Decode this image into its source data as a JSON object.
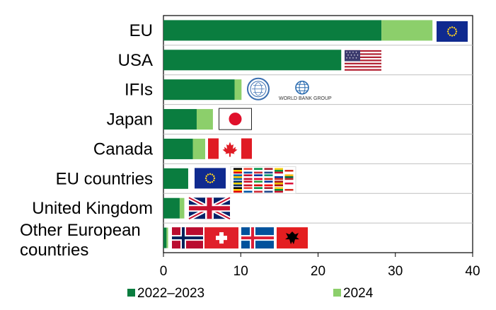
{
  "chart_data": {
    "type": "bar",
    "orientation": "horizontal",
    "stacked": true,
    "categories": [
      "EU",
      "USA",
      "IFIs",
      "Japan",
      "Canada",
      "EU countries",
      "United Kingdom",
      "Other European countries"
    ],
    "category_lines": [
      [
        "EU"
      ],
      [
        "USA"
      ],
      [
        "IFIs"
      ],
      [
        "Japan"
      ],
      [
        "Canada"
      ],
      [
        "EU countries"
      ],
      [
        "United Kingdom"
      ],
      [
        "Other European",
        "countries"
      ]
    ],
    "series": [
      {
        "name": "2022–2023",
        "color": "#0a7d3f",
        "values": [
          28.2,
          23.0,
          9.2,
          4.3,
          3.8,
          3.2,
          2.1,
          0.4
        ]
      },
      {
        "name": "2024",
        "color": "#8ccf6b",
        "values": [
          6.6,
          0.0,
          0.9,
          2.1,
          1.6,
          0.0,
          0.6,
          0.2
        ]
      }
    ],
    "xlim": [
      0,
      40
    ],
    "xticks": [
      "0",
      "10",
      "20",
      "30",
      "40"
    ],
    "grid": false,
    "legend": "bottom",
    "icons": [
      [
        "eu-flag-icon"
      ],
      [
        "us-flag-icon"
      ],
      [
        "imf-seal-icon",
        "world-bank-logo-icon"
      ],
      [
        "japan-flag-icon"
      ],
      [
        "canada-flag-icon"
      ],
      [
        "eu-flag-icon",
        "eu-member-flags-grid-icon"
      ],
      [
        "uk-flag-icon"
      ],
      [
        "norway-flag-icon",
        "switzerland-flag-icon",
        "iceland-flag-icon",
        "albania-flag-icon"
      ]
    ],
    "logo_text": "WORLD BANK GROUP"
  }
}
